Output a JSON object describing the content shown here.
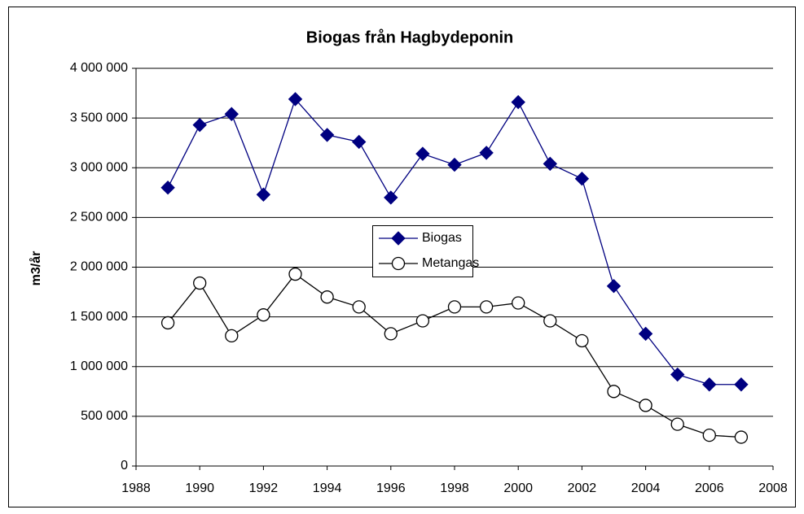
{
  "chart_data": {
    "type": "line",
    "title": "Biogas från Hagbydeponin",
    "y_label": "m3/år",
    "x": [
      1989,
      1990,
      1991,
      1992,
      1993,
      1994,
      1995,
      1996,
      1997,
      1998,
      1999,
      2000,
      2001,
      2002,
      2003,
      2004,
      2005,
      2006,
      2007
    ],
    "series": [
      {
        "name": "Biogas",
        "color": "#000080",
        "marker": "diamond",
        "values": [
          2800000,
          3430000,
          3540000,
          2730000,
          3690000,
          3330000,
          3260000,
          2700000,
          3140000,
          3030000,
          3150000,
          3660000,
          3040000,
          2890000,
          1810000,
          1330000,
          920000,
          820000,
          820000
        ]
      },
      {
        "name": "Metangas",
        "color": "#000000",
        "marker": "circle",
        "values": [
          1440000,
          1840000,
          1310000,
          1520000,
          1930000,
          1700000,
          1600000,
          1330000,
          1460000,
          1600000,
          1600000,
          1640000,
          1460000,
          1260000,
          750000,
          610000,
          420000,
          310000,
          290000
        ]
      }
    ],
    "xlim": [
      1988,
      2008
    ],
    "xticks": [
      1988,
      1990,
      1992,
      1994,
      1996,
      1998,
      2000,
      2002,
      2004,
      2006,
      2008
    ],
    "ylim": [
      0,
      4000000
    ],
    "yticks": [
      0,
      {
        "value": 500000,
        "label": "500 000"
      },
      {
        "value": 1000000,
        "label": "1 000 000"
      },
      {
        "value": 1500000,
        "label": "1 500 000"
      },
      {
        "value": 2000000,
        "label": "2 000 000"
      },
      {
        "value": 2500000,
        "label": "2 500 000"
      },
      {
        "value": 3000000,
        "label": "3 000 000"
      },
      {
        "value": 3500000,
        "label": "3 500 000"
      },
      {
        "value": 4000000,
        "label": "4 000 000"
      }
    ],
    "grid": true,
    "legend": "center"
  }
}
